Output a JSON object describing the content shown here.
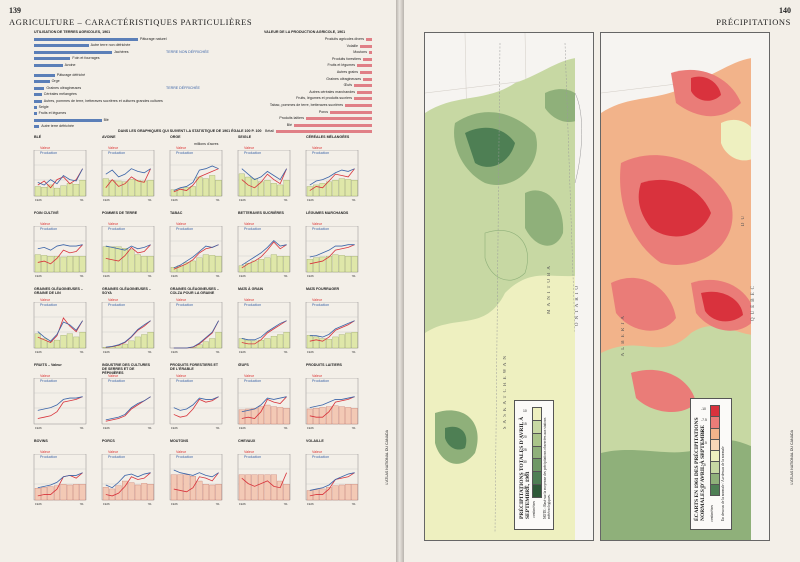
{
  "left_page": {
    "page_number": "139",
    "title": "AGRICULTURE – CARACTÉRISTIQUES PARTICULIÈRES",
    "usage": {
      "title": "UTILISATION DE TERRES AGRICOLES, 1961",
      "scale_label": "millions d'acres",
      "scale_ticks": [
        "0",
        "10",
        "20",
        "30",
        "40",
        "50"
      ],
      "nondef_header": "TERRE NON DÉFRICHÉE",
      "def_header": "TERRE DÉFRICHÉE",
      "items": [
        {
          "label": "Pâturage naturel",
          "value": 40,
          "kind": "g"
        },
        {
          "label": "Autre terre non défrichée",
          "value": 21,
          "kind": "g"
        },
        {
          "label": "Jachères",
          "value": 30,
          "kind": "g"
        },
        {
          "label": "Foin et fourrages",
          "value": 14,
          "kind": "g"
        },
        {
          "label": "Avoine",
          "value": 11,
          "kind": "g"
        },
        {
          "label": "Pâturage défriché",
          "value": 8,
          "kind": "g"
        },
        {
          "label": "Orge",
          "value": 6,
          "kind": "g"
        },
        {
          "label": "Graines oléagineuses",
          "value": 4,
          "kind": "g"
        },
        {
          "label": "Céréales mélangées",
          "value": 3,
          "kind": "g"
        },
        {
          "label": "Autres, pommes de terre, betteraves sucrières et cultures grandes cultures",
          "value": 3,
          "kind": "g"
        },
        {
          "label": "Seigle",
          "value": 1,
          "kind": "g"
        },
        {
          "label": "Fruits et légumes",
          "value": 1,
          "kind": "g"
        },
        {
          "label": "Blé",
          "value": 26,
          "kind": "g"
        },
        {
          "label": "Autre terre défrichée",
          "value": 2,
          "kind": "g"
        }
      ],
      "value_title": "VALEUR DE LA PRODUCTION AGRICOLE, 1961",
      "value_items": [
        {
          "label": "Produits agricoles divers",
          "value": 2,
          "kind": "r"
        },
        {
          "label": "Volaille",
          "value": 4,
          "kind": "r"
        },
        {
          "label": "Moutons",
          "value": 1,
          "kind": "r"
        },
        {
          "label": "Produits forestiers",
          "value": 3,
          "kind": "r"
        },
        {
          "label": "Fruits et légumes",
          "value": 5,
          "kind": "r"
        },
        {
          "label": "Autres grains",
          "value": 4,
          "kind": "r"
        },
        {
          "label": "Graines oléagineuses",
          "value": 3,
          "kind": "r"
        },
        {
          "label": "Œufs",
          "value": 6,
          "kind": "r"
        },
        {
          "label": "Autres céréales marchandes",
          "value": 5,
          "kind": "r"
        },
        {
          "label": "Fruits, légumes et produits sucriers",
          "value": 6,
          "kind": "r"
        },
        {
          "label": "Tabac, pommes de terre, betteraves sucrières",
          "value": 9,
          "kind": "r"
        },
        {
          "label": "Porcs",
          "value": 14,
          "kind": "r"
        },
        {
          "label": "Produits laitiers",
          "value": 22,
          "kind": "r"
        },
        {
          "label": "Blé",
          "value": 26,
          "kind": "r"
        },
        {
          "label": "Bétail",
          "value": 32,
          "kind": "r"
        }
      ],
      "value_scale_label": "millions de dollars"
    },
    "grid_heading": "DANS LES GRAPHIQUES QUI SUIVENT LA STATISTIQUE DE 1961 ÉGALE 100 P. 100",
    "legend": {
      "valeur": "Valeur",
      "production": "Production",
      "surface": "Surface"
    },
    "x_ticks": [
      "1926",
      "'31",
      "'36",
      "'41",
      "'46",
      "'51",
      "'56",
      "'61"
    ],
    "y_ticks": [
      "150%",
      "100%",
      "50%"
    ],
    "panels": [
      {
        "title": "BLÉ",
        "bars": [
          60,
          55,
          70,
          50,
          65,
          80,
          75,
          100
        ],
        "val": [
          40,
          55,
          30,
          60,
          70,
          45,
          60,
          100
        ],
        "prod": [
          50,
          40,
          60,
          45,
          75,
          60,
          55,
          100
        ],
        "style": "green"
      },
      {
        "title": "AVOINE",
        "bars": [
          110,
          100,
          95,
          90,
          105,
          100,
          95,
          100
        ],
        "val": [
          30,
          60,
          35,
          45,
          70,
          55,
          50,
          100
        ],
        "prod": [
          80,
          95,
          70,
          80,
          100,
          90,
          85,
          100
        ],
        "style": "green"
      },
      {
        "title": "ORGE",
        "bars": [
          40,
          45,
          55,
          60,
          120,
          110,
          130,
          100
        ],
        "val": [
          15,
          25,
          20,
          40,
          70,
          80,
          90,
          100
        ],
        "prod": [
          20,
          30,
          35,
          50,
          95,
          100,
          110,
          100
        ],
        "style": "green"
      },
      {
        "title": "SEIGLE",
        "bars": [
          140,
          120,
          110,
          90,
          100,
          80,
          70,
          100
        ],
        "val": [
          60,
          40,
          30,
          50,
          80,
          60,
          45,
          100
        ],
        "prod": [
          100,
          80,
          60,
          70,
          90,
          75,
          60,
          100
        ],
        "style": "green"
      },
      {
        "title": "CÉRÉALES MÉLANGÉES",
        "bars": [
          60,
          70,
          80,
          90,
          100,
          110,
          105,
          100
        ],
        "val": [
          20,
          35,
          30,
          55,
          80,
          75,
          70,
          100
        ],
        "prod": [
          40,
          55,
          60,
          70,
          85,
          95,
          90,
          100
        ],
        "style": "green"
      },
      {
        "title": "FOIN CULTIVÉ",
        "bars": [
          110,
          105,
          100,
          100,
          95,
          100,
          100,
          100
        ],
        "val": [
          35,
          40,
          30,
          50,
          80,
          70,
          75,
          100
        ],
        "prod": [
          85,
          90,
          80,
          95,
          100,
          95,
          95,
          100
        ],
        "style": "green"
      },
      {
        "title": "POMMES DE TERRE",
        "bars": [
          180,
          170,
          160,
          150,
          140,
          110,
          100,
          100
        ],
        "val": [
          50,
          45,
          40,
          60,
          90,
          70,
          75,
          100
        ],
        "prod": [
          95,
          90,
          85,
          80,
          95,
          85,
          90,
          100
        ],
        "style": "green"
      },
      {
        "title": "TABAC",
        "bars": [
          30,
          40,
          60,
          70,
          90,
          110,
          105,
          100
        ],
        "val": [
          10,
          20,
          30,
          45,
          70,
          85,
          90,
          100
        ],
        "prod": [
          15,
          25,
          40,
          55,
          75,
          95,
          90,
          100
        ],
        "style": "green"
      },
      {
        "title": "BETTERAVES SUCRIÈRES",
        "bars": [
          40,
          55,
          70,
          80,
          90,
          110,
          100,
          100
        ],
        "val": [
          15,
          30,
          40,
          55,
          80,
          110,
          85,
          100
        ],
        "prod": [
          25,
          40,
          55,
          70,
          90,
          115,
          95,
          100
        ],
        "style": "green"
      },
      {
        "title": "LÉGUMES MARCHANDS",
        "bars": [
          80,
          90,
          95,
          100,
          110,
          105,
          100,
          100
        ],
        "val": [
          30,
          35,
          40,
          55,
          80,
          85,
          90,
          100
        ],
        "prod": [
          55,
          60,
          70,
          80,
          95,
          95,
          100,
          100
        ],
        "style": "green"
      },
      {
        "title": "GRAINES OLÉAGINEUSES – GRAINE DE LIN",
        "bars": [
          90,
          60,
          40,
          50,
          80,
          90,
          70,
          100
        ],
        "val": [
          40,
          30,
          20,
          45,
          110,
          80,
          60,
          100
        ],
        "prod": [
          60,
          40,
          25,
          50,
          95,
          85,
          65,
          100
        ],
        "style": "green"
      },
      {
        "title": "GRAINES OLÉAGINEUSES – SOYA",
        "bars": [
          5,
          8,
          15,
          25,
          45,
          70,
          85,
          100
        ],
        "val": [
          2,
          5,
          10,
          20,
          40,
          65,
          80,
          100
        ],
        "prod": [
          3,
          6,
          12,
          22,
          42,
          68,
          85,
          100
        ],
        "style": "green"
      },
      {
        "title": "GRAINES OLÉAGINEUSES – COLZA POUR LA GRAINE",
        "bars": [
          0,
          0,
          0,
          5,
          20,
          40,
          60,
          100
        ],
        "val": [
          0,
          0,
          0,
          3,
          15,
          35,
          55,
          100
        ],
        "prod": [
          0,
          0,
          0,
          4,
          18,
          38,
          58,
          100
        ],
        "style": "green"
      },
      {
        "title": "MAÏS À GRAIN",
        "bars": [
          60,
          50,
          45,
          50,
          60,
          75,
          85,
          100
        ],
        "val": [
          20,
          15,
          15,
          30,
          55,
          70,
          85,
          100
        ],
        "prod": [
          35,
          30,
          30,
          40,
          60,
          75,
          90,
          100
        ],
        "style": "green"
      },
      {
        "title": "MAÏS FOURRAGER",
        "bars": [
          80,
          70,
          60,
          55,
          70,
          85,
          95,
          100
        ],
        "val": [
          25,
          30,
          25,
          40,
          65,
          75,
          85,
          100
        ],
        "prod": [
          45,
          45,
          40,
          50,
          70,
          80,
          90,
          100
        ],
        "style": "green"
      },
      {
        "title": "FRUITS – Valeur",
        "bars": [
          0,
          0,
          0,
          0,
          0,
          0,
          0,
          0
        ],
        "val": [
          20,
          25,
          30,
          45,
          80,
          85,
          90,
          100
        ],
        "prod": [
          50,
          55,
          60,
          70,
          90,
          95,
          95,
          100
        ],
        "style": "lines"
      },
      {
        "title": "INDUSTRIE DES CULTURES DE SERRES ET DE PÉPINIÈRES",
        "bars": [
          0,
          0,
          0,
          0,
          0,
          0,
          0,
          0
        ],
        "val": [
          10,
          15,
          20,
          30,
          55,
          70,
          85,
          100
        ],
        "prod": [
          15,
          20,
          25,
          35,
          60,
          75,
          85,
          100
        ],
        "style": "lines"
      },
      {
        "title": "PRODUITS FORESTIERS ET DE L'ÉRABLE",
        "bars": [
          0,
          0,
          0,
          0,
          0,
          0,
          0,
          0
        ],
        "val": [
          35,
          25,
          30,
          55,
          90,
          80,
          85,
          100
        ],
        "prod": [
          60,
          50,
          55,
          70,
          95,
          90,
          90,
          100
        ],
        "style": "lines"
      },
      {
        "title": "ŒUFS",
        "bars": [
          90,
          95,
          100,
          110,
          120,
          110,
          105,
          100
        ],
        "val": [
          20,
          25,
          20,
          45,
          90,
          80,
          75,
          100
        ],
        "prod": [
          45,
          50,
          55,
          70,
          95,
          90,
          95,
          100
        ],
        "style": "red"
      },
      {
        "title": "PRODUITS LAITIERS",
        "bars": [
          95,
          100,
          105,
          110,
          115,
          110,
          105,
          100
        ],
        "val": [
          30,
          25,
          25,
          45,
          80,
          85,
          90,
          100
        ],
        "prod": [
          60,
          65,
          70,
          80,
          90,
          90,
          95,
          100
        ],
        "style": "red"
      },
      {
        "title": "BOVINS",
        "bars": [
          75,
          80,
          85,
          90,
          100,
          95,
          100,
          100
        ],
        "val": [
          15,
          20,
          20,
          40,
          85,
          90,
          80,
          100
        ],
        "prod": [
          45,
          50,
          55,
          65,
          85,
          90,
          90,
          100
        ],
        "style": "red"
      },
      {
        "title": "PORCS",
        "bars": [
          80,
          70,
          90,
          120,
          110,
          95,
          105,
          100
        ],
        "val": [
          20,
          15,
          25,
          50,
          85,
          75,
          80,
          100
        ],
        "prod": [
          55,
          45,
          65,
          90,
          95,
          85,
          95,
          100
        ],
        "style": "red"
      },
      {
        "title": "MOUTONS",
        "bars": [
          180,
          170,
          160,
          150,
          120,
          100,
          95,
          100
        ],
        "val": [
          40,
          35,
          30,
          45,
          85,
          80,
          70,
          100
        ],
        "prod": [
          110,
          100,
          95,
          90,
          100,
          90,
          85,
          100
        ],
        "style": "red"
      },
      {
        "title": "CHEVAUX",
        "bars": [
          450,
          420,
          380,
          330,
          250,
          170,
          120,
          100
        ],
        "val": [
          80,
          60,
          50,
          60,
          70,
          50,
          45,
          100
        ],
        "prod": [
          0,
          0,
          0,
          0,
          0,
          0,
          0,
          0
        ],
        "style": "red"
      },
      {
        "title": "VOLAILLE",
        "bars": [
          60,
          65,
          70,
          80,
          90,
          95,
          100,
          100
        ],
        "val": [
          15,
          20,
          20,
          40,
          75,
          80,
          85,
          100
        ],
        "prod": [
          35,
          40,
          45,
          55,
          75,
          85,
          95,
          100
        ],
        "style": "red"
      }
    ],
    "side_credit": "L'ATLAS NATIONAL DU CANADA"
  },
  "right_page": {
    "page_number": "140",
    "title": "PRÉCIPITATIONS",
    "map1_legend": {
      "title": "PRÉCIPITATIONS TOTALES D'AVRIL À SEPTEMBRE, 1961",
      "unit": "centimètres",
      "classes": [
        "10",
        "15",
        "20",
        "25",
        "30",
        "35",
        "45"
      ],
      "note": "NOTE : Basé sur la moyenne des précipitations observées aux stations météorologiques."
    },
    "map2_legend": {
      "title": "ÉCARTS EN 1961 DES PRÉCIPITATIONS NORMALES D'AVRIL À SEPTEMBRE",
      "unit": "centimètres",
      "classes": [
        "-10",
        "-7.5",
        "-5",
        "-2.5",
        "0",
        "2.5",
        "5",
        "7.5"
      ],
      "note": "En dessous de la normale / Au-dessus de la normale"
    },
    "map_labels": [
      "MANITOBA",
      "ONTARIO",
      "SASKATCHEWAN",
      "ALBERTA",
      "DU",
      "QUÉBEC"
    ],
    "side_credit": "L'ATLAS NATIONAL DU CANADA",
    "colors": {
      "green_dark": "#4e7f54",
      "green_mid": "#8fb07a",
      "green_light": "#c7d8a3",
      "yellow": "#eef0c0",
      "red_dark": "#d9323d",
      "red_mid": "#ea7c78",
      "orange": "#f2b38a"
    }
  }
}
